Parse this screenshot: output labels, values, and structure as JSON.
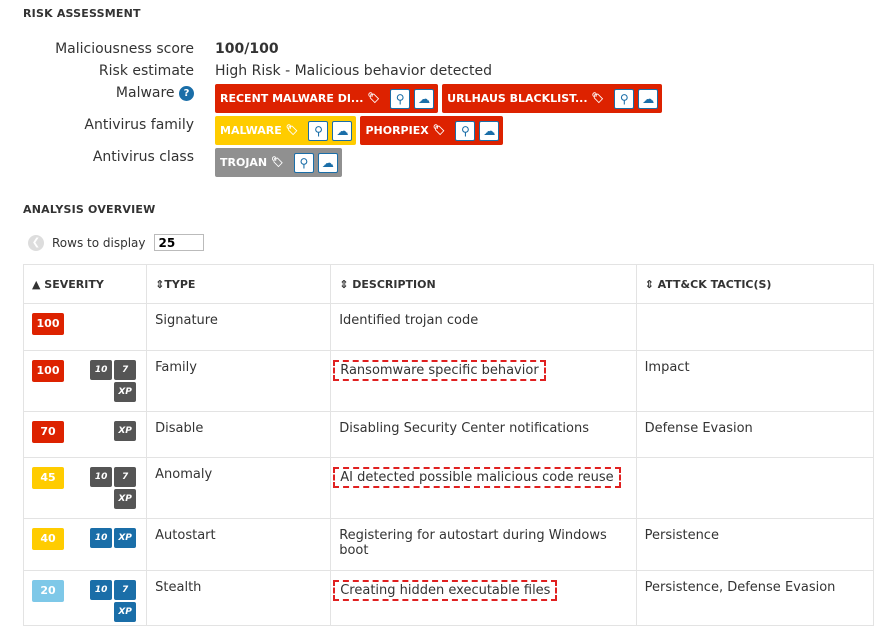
{
  "risk": {
    "heading": "RISK ASSESSMENT",
    "score_label": "Maliciousness score",
    "score": "100/100",
    "estimate_label": "Risk estimate",
    "estimate": "High Risk - Malicious behavior detected",
    "malware_label": "Malware",
    "help": "?",
    "malware_tags": [
      {
        "text": "RECENT MALWARE DI...",
        "color": "#dd2200"
      },
      {
        "text": "URLHAUS BLACKLIST...",
        "color": "#dd2200"
      }
    ],
    "family_label": "Antivirus family",
    "family_tags": [
      {
        "text": "MALWARE",
        "color": "#ffcc00"
      },
      {
        "text": "PHORPIEX",
        "color": "#dd2200"
      }
    ],
    "class_label": "Antivirus class",
    "class_tags": [
      {
        "text": "TROJAN",
        "color": "#909090"
      }
    ]
  },
  "overview": {
    "heading": "ANALYSIS OVERVIEW",
    "rows_label": "Rows to display",
    "rows_value": "25",
    "columns": [
      "SEVERITY",
      "TYPE",
      "DESCRIPTION",
      "ATT&CK TACTIC(S)"
    ],
    "rows": [
      {
        "severity": "100",
        "color": "#dd2200",
        "os": [],
        "type": "Signature",
        "description": "Identified trojan code",
        "tactic": "",
        "highlight": false
      },
      {
        "severity": "100",
        "color": "#dd2200",
        "os": [
          "10",
          "7",
          "XP"
        ],
        "os_color": "#555555",
        "type": "Family",
        "description": "Ransomware specific behavior",
        "tactic": "Impact",
        "highlight": true
      },
      {
        "severity": "70",
        "color": "#dd2200",
        "os": [
          "XP"
        ],
        "os_color": "#555555",
        "type": "Disable",
        "description": "Disabling Security Center notifications",
        "tactic": "Defense Evasion",
        "highlight": false
      },
      {
        "severity": "45",
        "color": "#ffcc00",
        "os": [
          "10",
          "7",
          "XP"
        ],
        "os_color": "#555555",
        "type": "Anomaly",
        "description": "AI detected possible malicious code reuse",
        "tactic": "",
        "highlight": true
      },
      {
        "severity": "40",
        "color": "#ffcc00",
        "os": [
          "10",
          "XP"
        ],
        "os_color": "#1a6ea8",
        "type": "Autostart",
        "description": "Registering for autostart during Windows boot",
        "tactic": "Persistence",
        "highlight": false
      },
      {
        "severity": "20",
        "color": "#7ec8e8",
        "os": [
          "10",
          "7",
          "XP"
        ],
        "os_color": "#1a6ea8",
        "type": "Stealth",
        "description": "Creating hidden executable files",
        "tactic": "Persistence, Defense Evasion",
        "highlight": true
      }
    ]
  }
}
